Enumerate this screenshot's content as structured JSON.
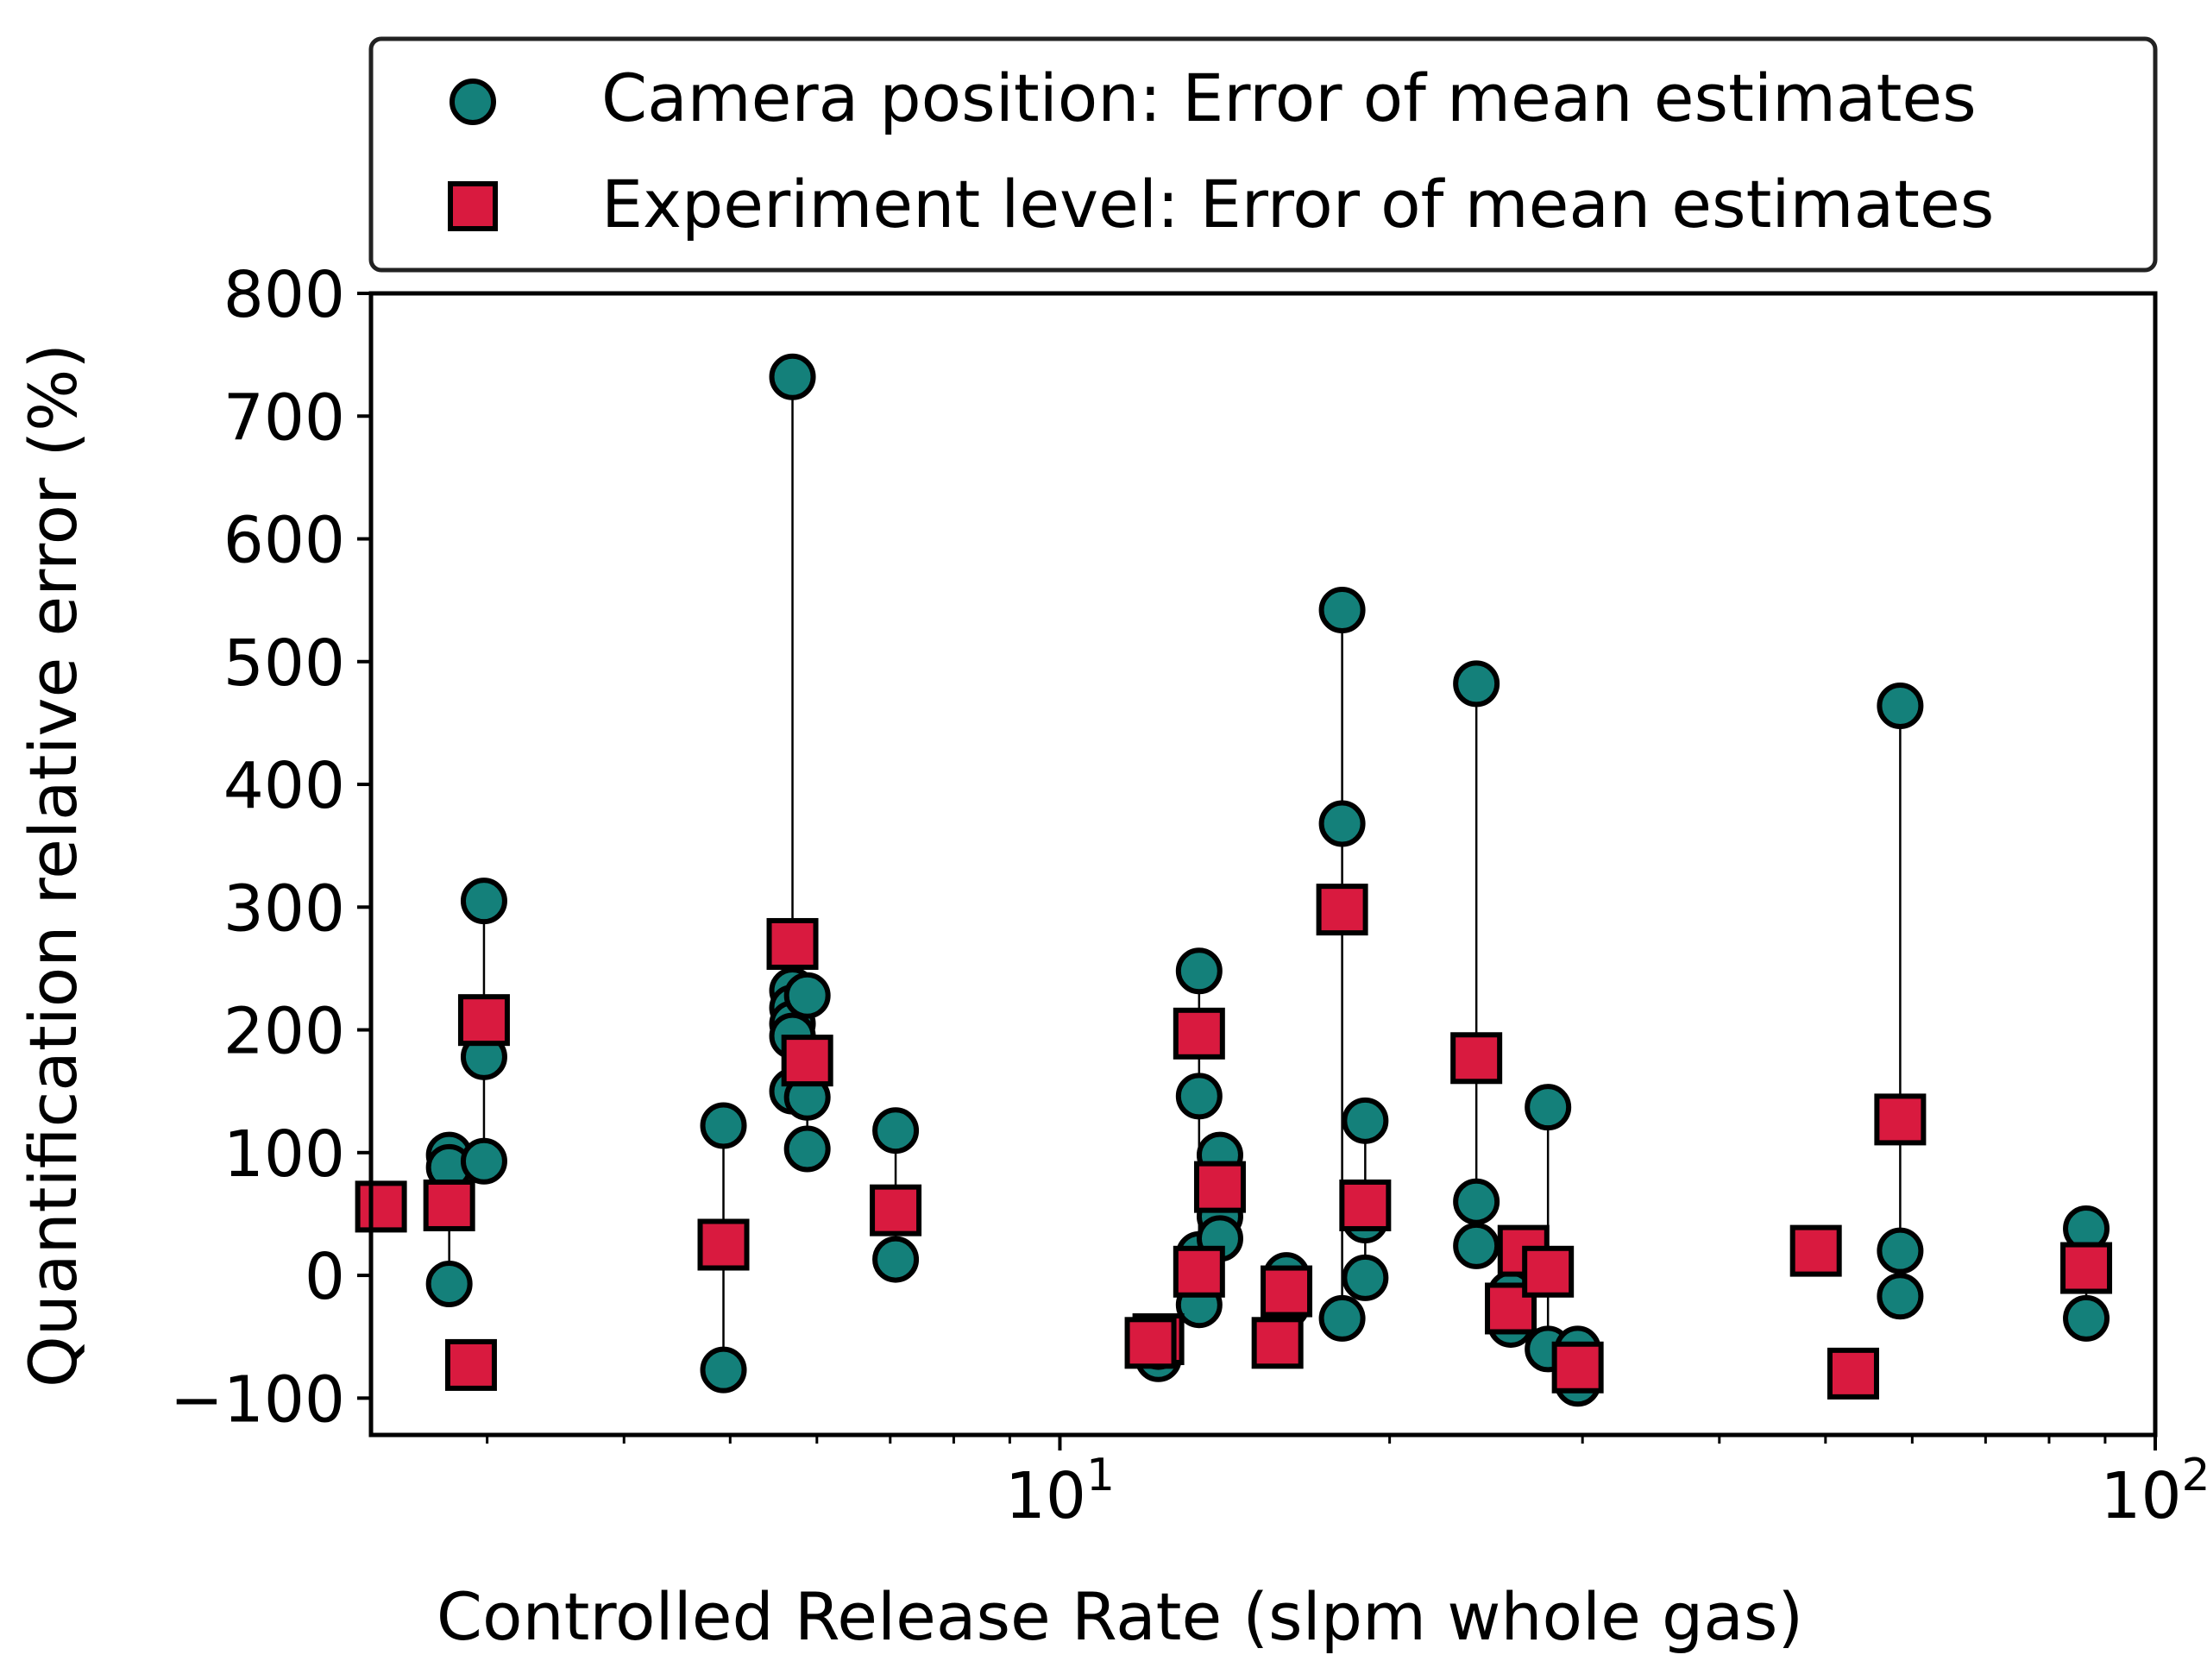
{
  "chart_data": {
    "type": "scatter",
    "xscale": "log",
    "xlim": [
      2.35,
      100
    ],
    "ylim": [
      -130,
      800
    ],
    "xlabel": "Controlled Release Rate (slpm whole gas)",
    "ylabel": "Quantification relative error (%)",
    "yticks": [
      -100,
      0,
      100,
      200,
      300,
      400,
      500,
      600,
      700,
      800
    ],
    "ytick_labels": [
      "−100",
      "0",
      "100",
      "200",
      "300",
      "400",
      "500",
      "600",
      "700",
      "800"
    ],
    "xticks_major": [
      10,
      100
    ],
    "xtick_labels": [
      {
        "base": "10",
        "exp": "1"
      },
      {
        "base": "10",
        "exp": "2"
      }
    ],
    "xticks_minor": [
      3,
      4,
      5,
      6,
      7,
      8,
      9,
      20,
      30,
      40,
      50,
      60,
      70,
      80,
      90
    ],
    "legend": {
      "position": "above plot, right",
      "entries": [
        {
          "marker": "circle",
          "label": "Camera position: Error of mean estimates"
        },
        {
          "marker": "square",
          "label": "Experiment level: Error of mean estimates"
        }
      ]
    },
    "colors": {
      "camera": "#14807A",
      "experiment": "#D91A3F",
      "edge": "#000000"
    },
    "series": [
      {
        "name": "Camera position: Error of mean estimates",
        "marker": "circle",
        "points": [
          {
            "x": 2.77,
            "y": 98
          },
          {
            "x": 2.77,
            "y": 88
          },
          {
            "x": 2.77,
            "y": -7
          },
          {
            "x": 2.98,
            "y": 305
          },
          {
            "x": 2.98,
            "y": 178
          },
          {
            "x": 2.98,
            "y": 93
          },
          {
            "x": 4.93,
            "y": 122
          },
          {
            "x": 4.93,
            "y": -77
          },
          {
            "x": 5.7,
            "y": 732
          },
          {
            "x": 5.7,
            "y": 232
          },
          {
            "x": 5.7,
            "y": 218
          },
          {
            "x": 5.7,
            "y": 205
          },
          {
            "x": 5.7,
            "y": 195
          },
          {
            "x": 5.7,
            "y": 150
          },
          {
            "x": 5.88,
            "y": 228
          },
          {
            "x": 5.88,
            "y": 145
          },
          {
            "x": 5.88,
            "y": 103
          },
          {
            "x": 7.08,
            "y": 118
          },
          {
            "x": 7.08,
            "y": 13
          },
          {
            "x": 12.3,
            "y": -68
          },
          {
            "x": 12.3,
            "y": -58
          },
          {
            "x": 13.4,
            "y": 248
          },
          {
            "x": 13.4,
            "y": 146
          },
          {
            "x": 13.4,
            "y": 17
          },
          {
            "x": 13.4,
            "y": -24
          },
          {
            "x": 14.0,
            "y": 98
          },
          {
            "x": 14.0,
            "y": 48
          },
          {
            "x": 14.0,
            "y": 30
          },
          {
            "x": 16.1,
            "y": 0
          },
          {
            "x": 16.1,
            "y": -25
          },
          {
            "x": 18.1,
            "y": 542
          },
          {
            "x": 18.1,
            "y": 368
          },
          {
            "x": 18.1,
            "y": -35
          },
          {
            "x": 19.0,
            "y": 126
          },
          {
            "x": 19.0,
            "y": 45
          },
          {
            "x": 19.0,
            "y": -2
          },
          {
            "x": 24.0,
            "y": 482
          },
          {
            "x": 24.0,
            "y": 60
          },
          {
            "x": 24.0,
            "y": 24
          },
          {
            "x": 25.8,
            "y": -15
          },
          {
            "x": 25.8,
            "y": -40
          },
          {
            "x": 27.9,
            "y": 137
          },
          {
            "x": 27.9,
            "y": -60
          },
          {
            "x": 29.7,
            "y": -60
          },
          {
            "x": 29.7,
            "y": -88
          },
          {
            "x": 58.5,
            "y": 464
          },
          {
            "x": 58.5,
            "y": 20
          },
          {
            "x": 58.5,
            "y": -17
          },
          {
            "x": 86.5,
            "y": 38
          },
          {
            "x": 86.5,
            "y": -35
          }
        ]
      },
      {
        "name": "Experiment level: Error of mean estimates",
        "marker": "square",
        "points": [
          {
            "x": 2.4,
            "y": 56
          },
          {
            "x": 2.77,
            "y": 57
          },
          {
            "x": 2.9,
            "y": -73
          },
          {
            "x": 2.98,
            "y": 208
          },
          {
            "x": 4.93,
            "y": 25
          },
          {
            "x": 5.7,
            "y": 270
          },
          {
            "x": 5.88,
            "y": 175
          },
          {
            "x": 7.08,
            "y": 53
          },
          {
            "x": 12.3,
            "y": -52
          },
          {
            "x": 12.1,
            "y": -55
          },
          {
            "x": 13.4,
            "y": 197
          },
          {
            "x": 13.4,
            "y": 3
          },
          {
            "x": 14.0,
            "y": 72
          },
          {
            "x": 15.8,
            "y": -55
          },
          {
            "x": 16.1,
            "y": -13
          },
          {
            "x": 18.1,
            "y": 298
          },
          {
            "x": 19.0,
            "y": 57
          },
          {
            "x": 24.0,
            "y": 177
          },
          {
            "x": 26.5,
            "y": 20
          },
          {
            "x": 25.8,
            "y": -27
          },
          {
            "x": 27.9,
            "y": 3
          },
          {
            "x": 29.7,
            "y": -75
          },
          {
            "x": 49.0,
            "y": 20
          },
          {
            "x": 53.0,
            "y": -80
          },
          {
            "x": 58.5,
            "y": 127
          },
          {
            "x": 86.5,
            "y": 6
          }
        ]
      }
    ],
    "connectors": [
      {
        "x": 2.77,
        "ymin": -7,
        "ymax": 98
      },
      {
        "x": 2.98,
        "ymin": 93,
        "ymax": 305
      },
      {
        "x": 4.93,
        "ymin": -77,
        "ymax": 122
      },
      {
        "x": 5.7,
        "ymin": 150,
        "ymax": 732
      },
      {
        "x": 5.88,
        "ymin": 103,
        "ymax": 228
      },
      {
        "x": 7.08,
        "ymin": 13,
        "ymax": 118
      },
      {
        "x": 12.3,
        "ymin": -68,
        "ymax": -52
      },
      {
        "x": 13.4,
        "ymin": -24,
        "ymax": 248
      },
      {
        "x": 14.0,
        "ymin": 30,
        "ymax": 98
      },
      {
        "x": 16.1,
        "ymin": -25,
        "ymax": 0
      },
      {
        "x": 18.1,
        "ymin": -35,
        "ymax": 542
      },
      {
        "x": 19.0,
        "ymin": -2,
        "ymax": 126
      },
      {
        "x": 24.0,
        "ymin": 24,
        "ymax": 482
      },
      {
        "x": 25.8,
        "ymin": -40,
        "ymax": -15
      },
      {
        "x": 27.9,
        "ymin": -60,
        "ymax": 137
      },
      {
        "x": 29.7,
        "ymin": -88,
        "ymax": -60
      },
      {
        "x": 58.5,
        "ymin": -17,
        "ymax": 464
      },
      {
        "x": 86.5,
        "ymin": -35,
        "ymax": 38
      }
    ]
  }
}
